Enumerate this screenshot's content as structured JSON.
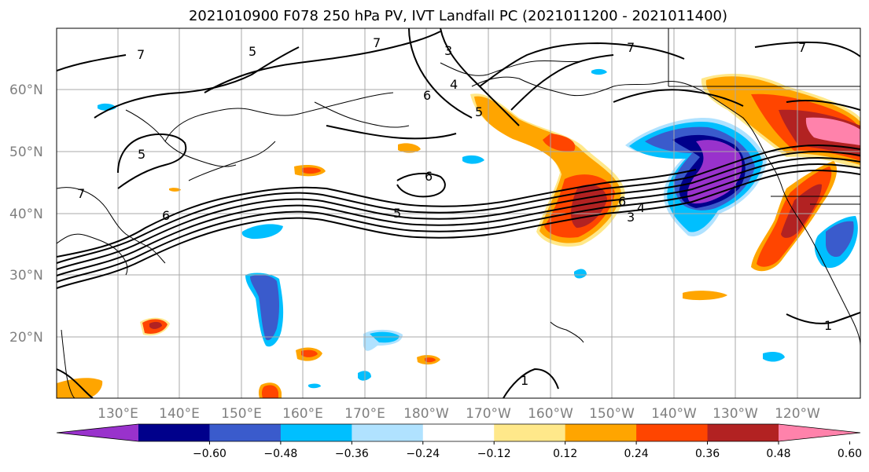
{
  "title": "2021010900 F078 250 hPa PV, IVT Landfall PC (2021011200 - 2021011400)",
  "map": {
    "lat_ticks": [
      "60°N",
      "50°N",
      "40°N",
      "30°N",
      "20°N"
    ],
    "lon_ticks": [
      "130°E",
      "140°E",
      "150°E",
      "160°E",
      "170°E",
      "180°W",
      "170°W",
      "160°W",
      "150°W",
      "140°W",
      "130°W",
      "120°W"
    ],
    "contour_labels": [
      "7",
      "5",
      "7",
      "3",
      "6",
      "4",
      "5",
      "7",
      "5",
      "6",
      "7",
      "5",
      "6",
      "3",
      "4",
      "6",
      "7",
      "1",
      "1"
    ]
  },
  "colorbar": {
    "ticks": [
      "−0.60",
      "−0.48",
      "−0.36",
      "−0.24",
      "−0.12",
      "0.12",
      "0.24",
      "0.36",
      "0.48",
      "0.60"
    ],
    "colors": [
      "#9932cc",
      "#00008b",
      "#3a5bcc",
      "#00bfff",
      "#b0e2ff",
      "#ffffff",
      "#ffe88a",
      "#ffa500",
      "#ff4500",
      "#b22222",
      "#ff82ab"
    ]
  }
}
